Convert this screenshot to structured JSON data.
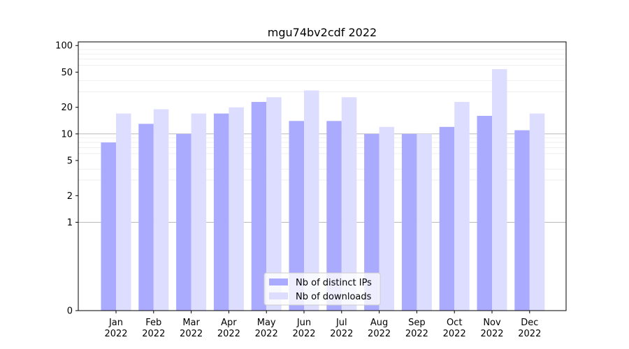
{
  "chart_data": {
    "type": "bar",
    "title": "mgu74bv2cdf 2022",
    "xlabel": "",
    "ylabel": "",
    "y_scale": "symlog",
    "ylim": [
      0,
      110
    ],
    "yticks": [
      0,
      1,
      2,
      5,
      10,
      20,
      50,
      100
    ],
    "categories": [
      [
        "Jan",
        "2022"
      ],
      [
        "Feb",
        "2022"
      ],
      [
        "Mar",
        "2022"
      ],
      [
        "Apr",
        "2022"
      ],
      [
        "May",
        "2022"
      ],
      [
        "Jun",
        "2022"
      ],
      [
        "Jul",
        "2022"
      ],
      [
        "Aug",
        "2022"
      ],
      [
        "Sep",
        "2022"
      ],
      [
        "Oct",
        "2022"
      ],
      [
        "Nov",
        "2022"
      ],
      [
        "Dec",
        "2022"
      ]
    ],
    "series": [
      {
        "name": "Nb of distinct IPs",
        "color": "#aaaaff",
        "values": [
          8,
          13,
          10,
          17,
          23,
          14,
          14,
          10,
          10,
          12,
          16,
          11
        ]
      },
      {
        "name": "Nb of downloads",
        "color": "#ddddff",
        "values": [
          17,
          19,
          17,
          20,
          26,
          31,
          26,
          12,
          10,
          23,
          54,
          17
        ]
      }
    ],
    "grid": true,
    "legend_position": "bottom-center"
  }
}
